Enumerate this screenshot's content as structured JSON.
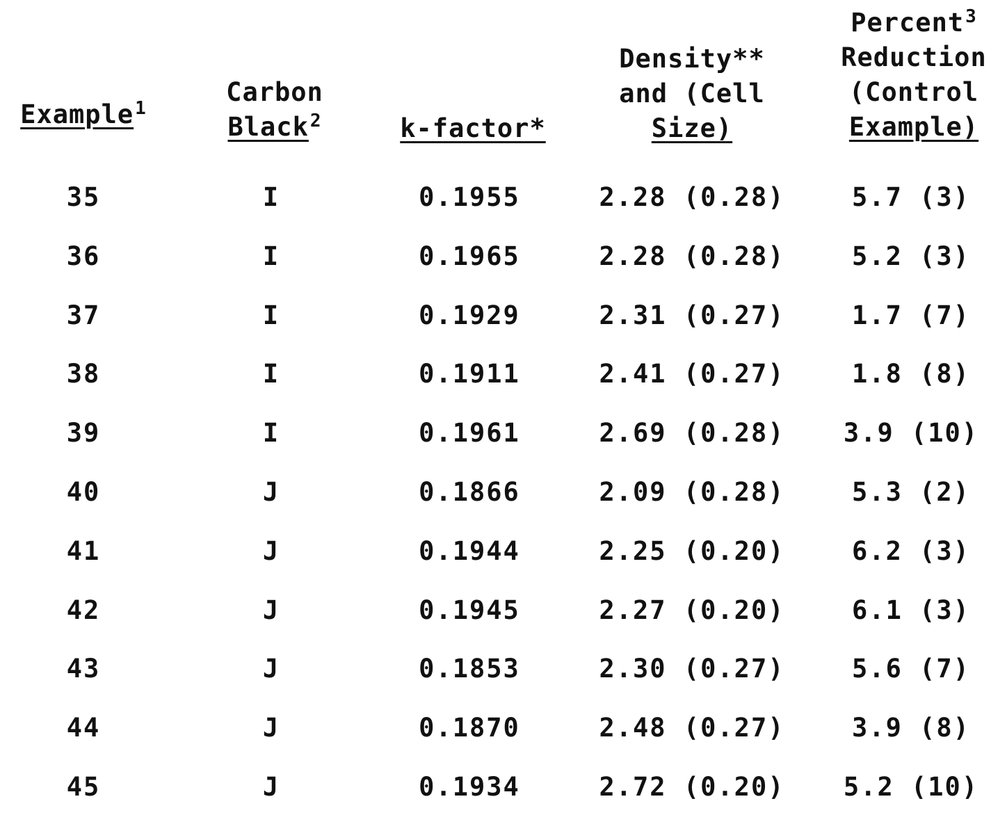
{
  "table": {
    "headers": {
      "example": {
        "line1": "Example",
        "sup": "1"
      },
      "carbon_black": {
        "line1": "Carbon",
        "line2": "Black",
        "sup": "2"
      },
      "k_factor": {
        "line1": "k-factor*"
      },
      "density": {
        "line1": "Density**",
        "line2": "and (Cell",
        "line3": "Size)"
      },
      "percent_reduction": {
        "line1": "Percent",
        "sup": "3",
        "line2": "Reduction",
        "line3": "(Control",
        "line4": "Example)"
      }
    },
    "rows": [
      {
        "example": "35",
        "carbon_black": "I",
        "k_factor": "0.1955",
        "density": "2.28 (0.28)",
        "percent_reduction": "5.7 (3)"
      },
      {
        "example": "36",
        "carbon_black": "I",
        "k_factor": "0.1965",
        "density": "2.28 (0.28)",
        "percent_reduction": "5.2 (3)"
      },
      {
        "example": "37",
        "carbon_black": "I",
        "k_factor": "0.1929",
        "density": "2.31 (0.27)",
        "percent_reduction": "1.7 (7)"
      },
      {
        "example": "38",
        "carbon_black": "I",
        "k_factor": "0.1911",
        "density": "2.41 (0.27)",
        "percent_reduction": "1.8 (8)"
      },
      {
        "example": "39",
        "carbon_black": "I",
        "k_factor": "0.1961",
        "density": "2.69 (0.28)",
        "percent_reduction": "3.9 (10)"
      },
      {
        "example": "40",
        "carbon_black": "J",
        "k_factor": "0.1866",
        "density": "2.09 (0.28)",
        "percent_reduction": "5.3 (2)"
      },
      {
        "example": "41",
        "carbon_black": "J",
        "k_factor": "0.1944",
        "density": "2.25 (0.20)",
        "percent_reduction": "6.2 (3)"
      },
      {
        "example": "42",
        "carbon_black": "J",
        "k_factor": "0.1945",
        "density": "2.27 (0.20)",
        "percent_reduction": "6.1 (3)"
      },
      {
        "example": "43",
        "carbon_black": "J",
        "k_factor": "0.1853",
        "density": "2.30 (0.27)",
        "percent_reduction": "5.6 (7)"
      },
      {
        "example": "44",
        "carbon_black": "J",
        "k_factor": "0.1870",
        "density": "2.48 (0.27)",
        "percent_reduction": "3.9 (8)"
      },
      {
        "example": "45",
        "carbon_black": "J",
        "k_factor": "0.1934",
        "density": "2.72 (0.20)",
        "percent_reduction": "5.2 (10)"
      }
    ]
  }
}
